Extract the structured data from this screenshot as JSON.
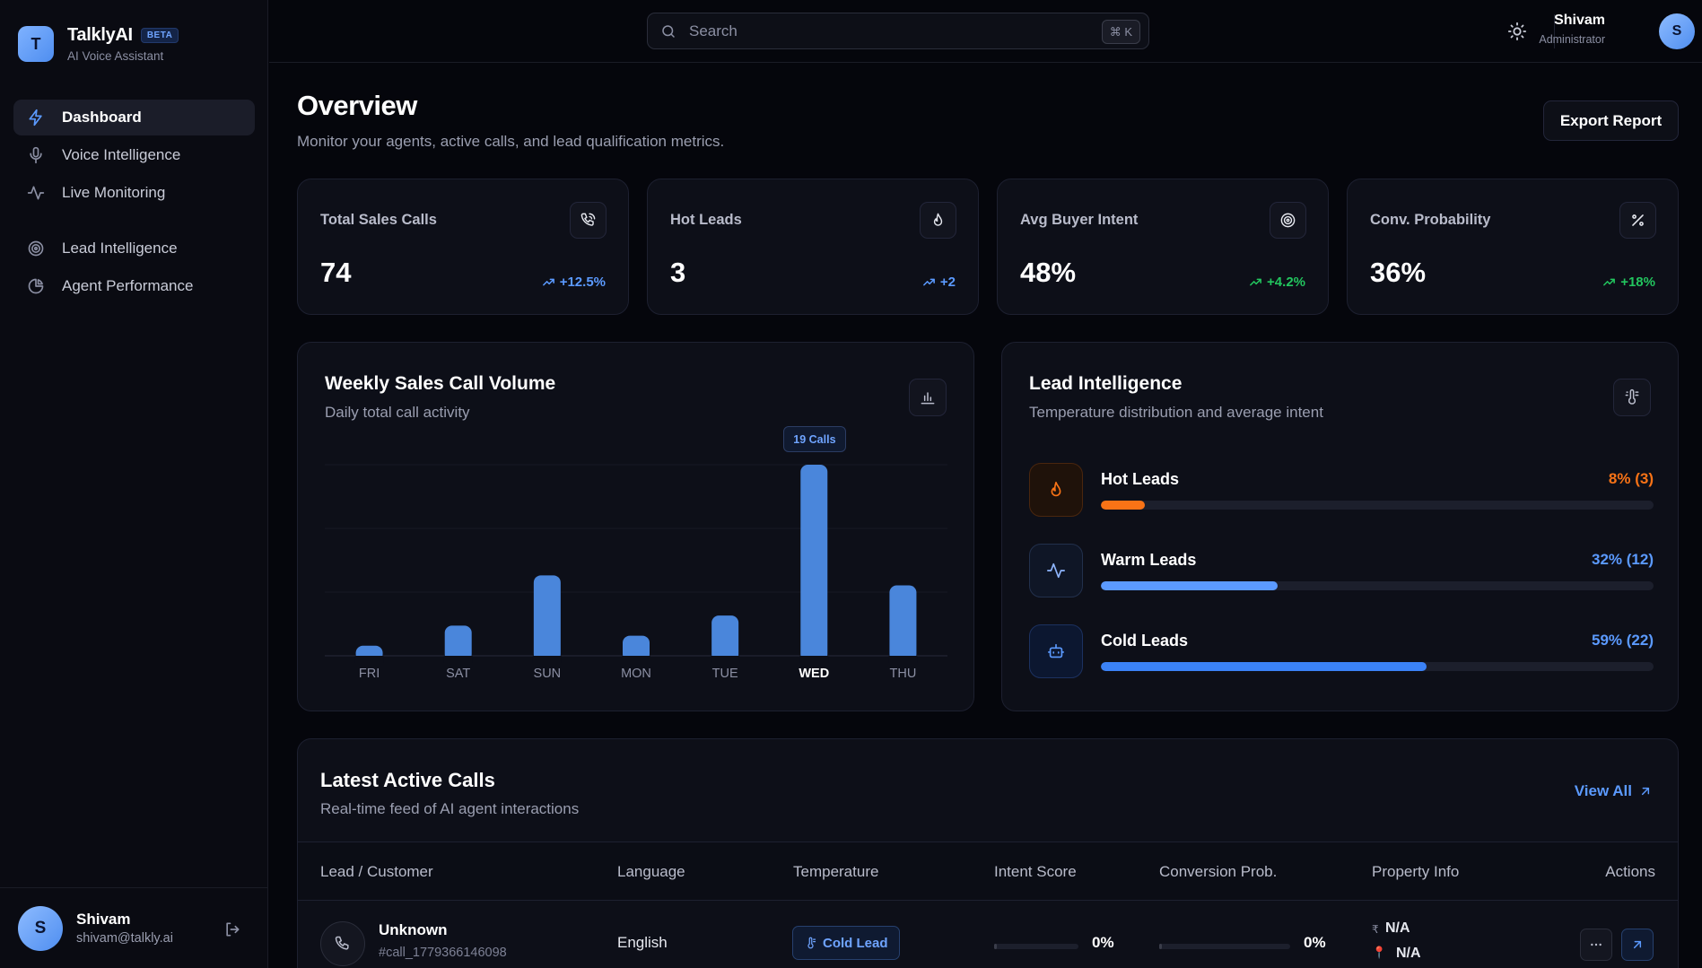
{
  "brand": {
    "initial": "T",
    "name": "TalklyAI",
    "badge": "BETA",
    "subtitle": "AI Voice Assistant"
  },
  "nav": {
    "items": [
      {
        "label": "Dashboard",
        "icon": "bolt-icon",
        "active": true
      },
      {
        "label": "Voice Intelligence",
        "icon": "microphone-icon"
      },
      {
        "label": "Live Monitoring",
        "icon": "activity-icon"
      },
      {
        "label": "Lead Intelligence",
        "icon": "target-icon"
      },
      {
        "label": "Agent Performance",
        "icon": "pie-chart-icon"
      }
    ]
  },
  "sidebar_user": {
    "initial": "S",
    "name": "Shivam",
    "email": "shivam@talkly.ai"
  },
  "header": {
    "search_placeholder": "Search",
    "shortcut": "⌘ K",
    "user_name": "Shivam",
    "user_role": "Administrator",
    "user_initial": "S"
  },
  "page": {
    "title": "Overview",
    "subtitle": "Monitor your agents, active calls, and lead qualification metrics.",
    "export_label": "Export Report"
  },
  "stats": [
    {
      "title": "Total Sales Calls",
      "value": "74",
      "delta": "+12.5%",
      "delta_color": "#5b9aff",
      "icon": "phone-call-icon"
    },
    {
      "title": "Hot Leads",
      "value": "3",
      "delta": "+2",
      "delta_color": "#5b9aff",
      "icon": "flame-icon"
    },
    {
      "title": "Avg Buyer Intent",
      "value": "48%",
      "delta": "+4.2%",
      "delta_color": "#22c55e",
      "icon": "target-icon"
    },
    {
      "title": "Conv. Probability",
      "value": "36%",
      "delta": "+18%",
      "delta_color": "#22c55e",
      "icon": "percent-icon"
    }
  ],
  "weekly_chart": {
    "title": "Weekly Sales Call Volume",
    "subtitle": "Daily total call activity",
    "tooltip": "19 Calls"
  },
  "chart_data": {
    "type": "bar",
    "categories": [
      "FRI",
      "SAT",
      "SUN",
      "MON",
      "TUE",
      "WED",
      "THU"
    ],
    "values": [
      1,
      3,
      8,
      2,
      4,
      19,
      7
    ],
    "highlight": "WED",
    "ylim": [
      0,
      19
    ],
    "grid": true,
    "bar_color": "#4a86db"
  },
  "lead_intel": {
    "title": "Lead Intelligence",
    "subtitle": "Temperature distribution and average intent",
    "rows": [
      {
        "name": "Hot Leads",
        "value": "8% (3)",
        "percent": 8,
        "color": "#f97316",
        "icon": "flame-icon"
      },
      {
        "name": "Warm Leads",
        "value": "32% (12)",
        "percent": 32,
        "color": "#5b9aff",
        "icon": "activity-icon"
      },
      {
        "name": "Cold Leads",
        "value": "59% (22)",
        "percent": 59,
        "color": "#3b82f6",
        "icon": "bot-icon"
      }
    ]
  },
  "calls": {
    "title": "Latest Active Calls",
    "subtitle": "Real-time feed of AI agent interactions",
    "view_all": "View All",
    "columns": [
      "Lead / Customer",
      "Language",
      "Temperature",
      "Intent Score",
      "Conversion Prob.",
      "Property Info",
      "Actions"
    ],
    "rows": [
      {
        "name": "Unknown",
        "id": "#call_1779366146098",
        "language": "English",
        "temperature": "Cold Lead",
        "intent": "0%",
        "intent_value": 0,
        "conversion": "0%",
        "conversion_value": 0,
        "price": "N/A",
        "location": "N/A",
        "currency_symbol": "₹",
        "pin_symbol": "📍"
      }
    ]
  }
}
